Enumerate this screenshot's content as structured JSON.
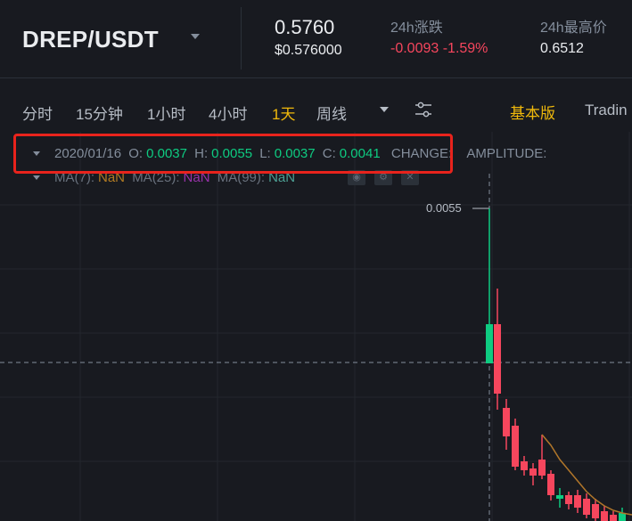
{
  "header": {
    "pair": "DREP/USDT",
    "last_price": "0.5760",
    "last_price_usd": "$0.576000",
    "change_label": "24h涨跌",
    "change_value": "-0.0093 -1.59%",
    "high_label": "24h最高价",
    "high_value": "0.6512"
  },
  "toolbar": {
    "intervals": [
      "分时",
      "15分钟",
      "1小时",
      "4小时",
      "1天",
      "周线"
    ],
    "active_interval": "1天",
    "basic_label": "基本版",
    "tradingview_label": "Tradin"
  },
  "legend": {
    "date": "2020/01/16",
    "o_label": "O:",
    "o_value": "0.0037",
    "h_label": "H:",
    "h_value": "0.0055",
    "l_label": "L:",
    "l_value": "0.0037",
    "c_label": "C:",
    "c_value": "0.0041",
    "change_label": "CHANGE:",
    "amplitude_label": "AMPLITUDE:",
    "ma7_label": "MA(7):",
    "ma7_value": "NaN",
    "ma25_label": "MA(25):",
    "ma25_value": "NaN",
    "ma99_label": "MA(99):",
    "ma99_value": "NaN"
  },
  "chart": {
    "price_tag": "0.0055",
    "colors": {
      "up": "#0ecb81",
      "down": "#f6465d",
      "ma7": "#b0762a",
      "accent": "#f0b90b",
      "highlight": "#e8231c"
    }
  }
}
